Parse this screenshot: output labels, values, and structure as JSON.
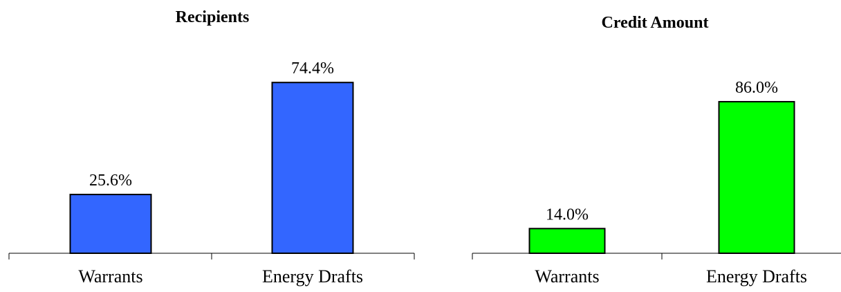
{
  "chart_data": [
    {
      "type": "bar",
      "title": "Recipients",
      "categories": [
        "Warrants",
        "Energy Drafts"
      ],
      "values": [
        25.6,
        74.4
      ],
      "value_labels": [
        "25.6%",
        "74.4%"
      ],
      "unit": "%",
      "xlabel": "",
      "ylabel": "",
      "ylim": [
        0,
        100
      ],
      "grid": false,
      "bar_color": "#3366ff"
    },
    {
      "type": "bar",
      "title": "Credit Amount",
      "categories": [
        "Warrants",
        "Energy Drafts"
      ],
      "values": [
        14.0,
        86.0
      ],
      "value_labels": [
        "14.0%",
        "86.0%"
      ],
      "unit": "%",
      "xlabel": "",
      "ylabel": "",
      "ylim": [
        0,
        100
      ],
      "grid": false,
      "bar_color": "#00ff00"
    }
  ]
}
